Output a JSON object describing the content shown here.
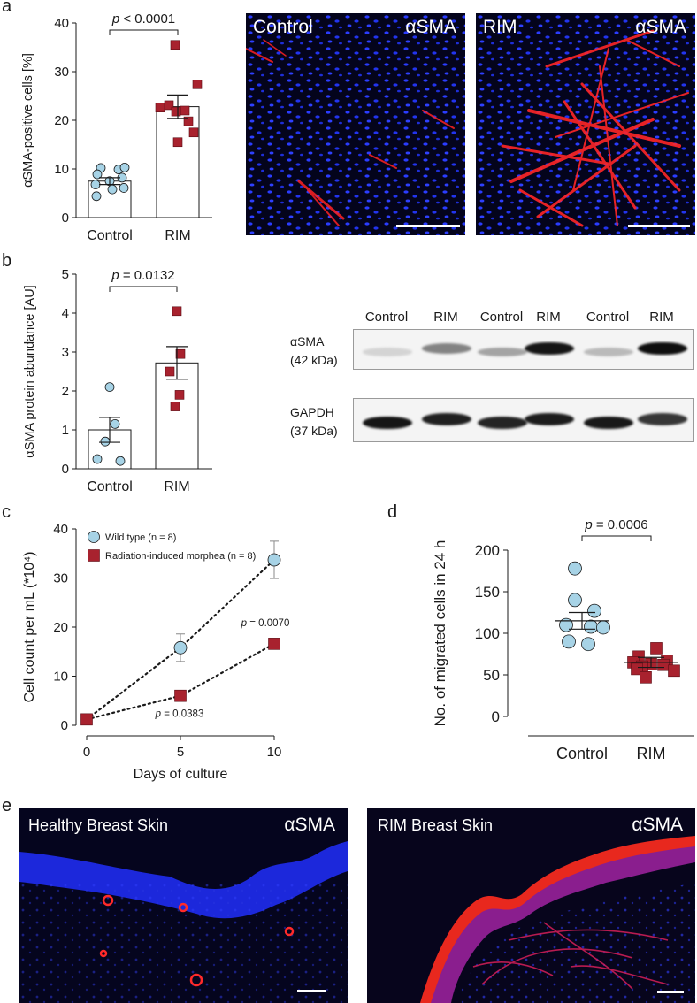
{
  "panels": {
    "a": {
      "letter": "a",
      "p_text_italic": "p",
      "p_text_rest": " < 0.0001",
      "images": [
        {
          "left_label": "Control",
          "right_label": "αSMA"
        },
        {
          "left_label": "RIM",
          "right_label": "αSMA"
        }
      ]
    },
    "b": {
      "letter": "b",
      "p_text_italic": "p",
      "p_text_rest": " = 0.0132",
      "blot": {
        "lanes": [
          "Control",
          "RIM",
          "Control",
          "RIM",
          "Control",
          "RIM"
        ],
        "rows": [
          {
            "name": "αSMA",
            "kda": "(42 kDa)",
            "intensity": [
              0.08,
              0.45,
              0.3,
              0.95,
              0.2,
              0.98
            ]
          },
          {
            "name": "GAPDH",
            "kda": "(37 kDa)",
            "intensity": [
              0.95,
              0.9,
              0.88,
              0.92,
              0.93,
              0.8
            ]
          }
        ]
      }
    },
    "c": {
      "letter": "c",
      "legend": [
        {
          "label": "Wild type (n = 8)",
          "marker": "circle"
        },
        {
          "label": "Radiation-induced morphea (n = 8)",
          "marker": "square"
        }
      ],
      "annotations": [
        {
          "italic": "p",
          "rest": " = 0.0070"
        },
        {
          "italic": "p",
          "rest": " = 0.0383"
        }
      ]
    },
    "d": {
      "letter": "d",
      "p_text_italic": "p",
      "p_text_rest": " = 0.0006"
    },
    "e": {
      "letter": "e",
      "images": [
        {
          "left_label": "Healthy Breast Skin",
          "right_label": "αSMA"
        },
        {
          "left_label": "RIM Breast Skin",
          "right_label": "αSMA"
        }
      ]
    }
  },
  "colors": {
    "control_fill": "#a7d3e6",
    "rim_fill": "#a8222e",
    "axis": "#1a1a1a",
    "nuclei": "#1a2dff",
    "actin": "#ff1a1a"
  },
  "chart_data": [
    {
      "id": "a",
      "type": "bar",
      "categories": [
        "Control",
        "RIM"
      ],
      "means": [
        7.5,
        22.8
      ],
      "sem": [
        0.7,
        2.4
      ],
      "points": [
        [
          10.2,
          9.9,
          10.3,
          8.9,
          8.2,
          7.5,
          6.8,
          6.1,
          5.8,
          4.4
        ],
        [
          35.5,
          27.4,
          23.1,
          22.6,
          22.0,
          21.8,
          19.8,
          17.5,
          15.5
        ]
      ],
      "ylabel": "αSMA-positive cells [%]",
      "ylim": [
        0,
        40
      ],
      "yticks": [
        0,
        10,
        20,
        30,
        40
      ]
    },
    {
      "id": "b",
      "type": "bar",
      "categories": [
        "Control",
        "RIM"
      ],
      "means": [
        1.0,
        2.72
      ],
      "sem": [
        0.32,
        0.42
      ],
      "points": [
        [
          2.1,
          1.15,
          0.7,
          0.25,
          0.2
        ],
        [
          4.05,
          2.95,
          2.5,
          1.9,
          1.6
        ]
      ],
      "ylabel": "αSMA protein abundance [AU]",
      "ylim": [
        0,
        5
      ],
      "yticks": [
        0,
        1,
        2,
        3,
        4,
        5
      ]
    },
    {
      "id": "c",
      "type": "line",
      "x": [
        0,
        5,
        10
      ],
      "series": [
        {
          "name": "Wild type (n = 8)",
          "values": [
            1.2,
            15.8,
            33.7
          ],
          "err": [
            0,
            2.8,
            3.8
          ]
        },
        {
          "name": "Radiation-induced morphea (n = 8)",
          "values": [
            1.2,
            6.0,
            16.6
          ],
          "err": [
            0,
            0.5,
            0.6
          ]
        }
      ],
      "xlabel": "Days of culture",
      "ylabel": "Cell count per mL (*10⁴)",
      "xlim": [
        0,
        10
      ],
      "ylim": [
        0,
        40
      ],
      "xticks": [
        0,
        5,
        10
      ],
      "yticks": [
        0,
        10,
        20,
        30,
        40
      ],
      "legend": "top-left"
    },
    {
      "id": "d",
      "type": "scatter",
      "categories": [
        "Control",
        "RIM"
      ],
      "means": [
        115,
        65
      ],
      "sem": [
        10,
        6
      ],
      "points": [
        [
          178,
          140,
          127,
          110,
          108,
          107,
          90,
          87
        ],
        [
          82,
          72,
          67,
          65,
          63,
          62,
          60,
          57,
          55,
          47
        ]
      ],
      "ylabel": "No. of migrated cells in 24 h",
      "ylim": [
        0,
        200
      ],
      "yticks": [
        0,
        50,
        100,
        150,
        200
      ]
    }
  ]
}
